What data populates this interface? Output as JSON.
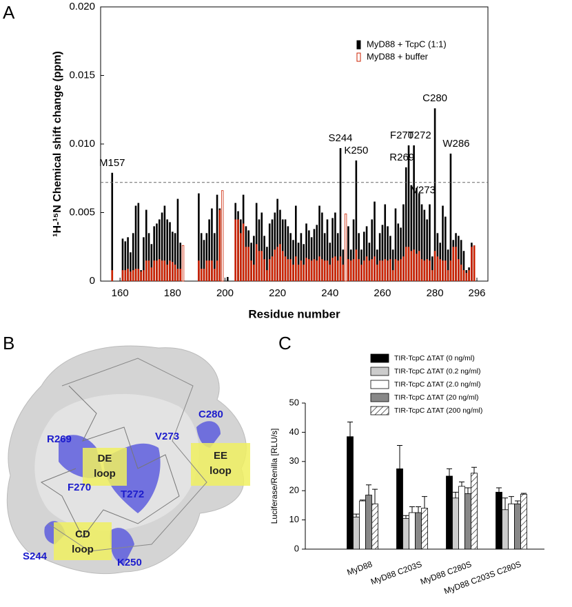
{
  "panel_labels": [
    "A",
    "B",
    "C"
  ],
  "chart_data": [
    {
      "type": "bar",
      "y_label": "¹H-¹⁵N Chemical shift change (ppm)",
      "x_label": "Residue number",
      "x": [
        157,
        161,
        162,
        163,
        164,
        165,
        166,
        167,
        168,
        169,
        170,
        171,
        172,
        173,
        174,
        175,
        176,
        177,
        178,
        179,
        180,
        181,
        182,
        183,
        184,
        190,
        191,
        192,
        193,
        194,
        195,
        196,
        197,
        198,
        199,
        201,
        204,
        205,
        206,
        207,
        208,
        209,
        210,
        211,
        212,
        213,
        214,
        215,
        216,
        217,
        218,
        219,
        220,
        221,
        222,
        223,
        224,
        225,
        226,
        227,
        228,
        229,
        230,
        231,
        232,
        233,
        234,
        235,
        236,
        237,
        238,
        239,
        240,
        241,
        242,
        243,
        244,
        245,
        246,
        247,
        248,
        249,
        250,
        251,
        252,
        253,
        254,
        255,
        256,
        257,
        258,
        259,
        260,
        261,
        262,
        263,
        264,
        265,
        266,
        267,
        268,
        269,
        270,
        271,
        272,
        273,
        274,
        275,
        276,
        277,
        278,
        279,
        280,
        281,
        282,
        283,
        284,
        285,
        286,
        287,
        288,
        289,
        290,
        291,
        292,
        293,
        294,
        295
      ],
      "series": [
        {
          "name": "MyD88 + TcpC (1:1)",
          "color": "#000000",
          "values": [
            0.0079,
            0.0031,
            0.0029,
            0.0032,
            0.0021,
            0.0035,
            0.0055,
            0.0057,
            0.0008,
            0.0032,
            0.0052,
            0.0035,
            0.0027,
            0.004,
            0.0042,
            0.0045,
            0.005,
            0.0055,
            0.0045,
            0.0043,
            0.0036,
            0.0035,
            0.006,
            0.0028,
            null,
            0.0064,
            0.0035,
            0.003,
            0.0035,
            0.0045,
            0.0053,
            0.0035,
            0.0063,
            0.0053,
            null,
            0.0003,
            0.0057,
            0.0051,
            0.0045,
            0.0063,
            0.004,
            0.0037,
            0.0028,
            0.0033,
            0.0057,
            0.0045,
            0.005,
            0.0033,
            0.0025,
            0.0042,
            0.0045,
            0.005,
            0.006,
            0.0052,
            0.0045,
            0.0045,
            0.004,
            0.0035,
            0.003,
            0.0055,
            0.0028,
            0.0035,
            0.0027,
            0.0042,
            0.0037,
            0.0032,
            0.0038,
            0.0041,
            0.0055,
            0.005,
            0.0035,
            0.0045,
            0.0028,
            0.0046,
            0.005,
            0.0035,
            0.0097,
            0.0023,
            0.0035,
            0.004,
            0.0023,
            0.0045,
            0.0088,
            0.0035,
            0.0023,
            0.0036,
            0.004,
            0.0028,
            0.0045,
            0.0058,
            0.0023,
            0.0035,
            0.0041,
            0.0056,
            0.004,
            0.0033,
            0.0023,
            0.0053,
            0.0042,
            0.0039,
            0.0056,
            0.0083,
            0.0099,
            0.007,
            0.0099,
            0.0068,
            0.0064,
            0.0056,
            0.0052,
            0.0045,
            0.0056,
            0.0018,
            0.0126,
            0.0035,
            0.0028,
            0.0055,
            0.0047,
            0.0023,
            0.0093,
            0.003,
            0.0035,
            0.0033,
            0.003,
            0.0022,
            0.0008,
            0.001,
            0.0028,
            0.0026
          ]
        },
        {
          "name": "MyD88 + buffer",
          "color": "#cc2200",
          "values": [
            0.0008,
            0.0008,
            0.0008,
            0.0009,
            0.0007,
            0.0008,
            0.0009,
            0.0009,
            0.0007,
            0.0008,
            0.0015,
            0.0015,
            0.001,
            0.0015,
            0.0015,
            0.0016,
            0.0015,
            0.0015,
            0.0012,
            0.0015,
            0.0014,
            0.0012,
            0.0009,
            0.0009,
            0.0026,
            0.0015,
            0.0009,
            0.0009,
            0.0015,
            0.0015,
            0.0015,
            0.0009,
            0.0015,
            0.0052,
            0.0066,
            null,
            0.0045,
            0.0045,
            0.0035,
            0.0042,
            0.0025,
            0.0025,
            0.0015,
            0.0012,
            0.0027,
            0.0022,
            0.0022,
            0.0016,
            0.0008,
            0.0016,
            0.0018,
            0.0023,
            0.0025,
            0.0027,
            0.0022,
            0.0018,
            0.0016,
            0.0016,
            0.0012,
            0.0018,
            0.0012,
            0.0015,
            0.0012,
            0.0017,
            0.0016,
            0.0015,
            0.0016,
            0.0015,
            0.0018,
            0.0016,
            0.0015,
            0.0015,
            0.0012,
            0.0017,
            0.0018,
            0.0015,
            0.0018,
            0.0012,
            0.0049,
            0.0016,
            0.0015,
            0.0016,
            0.0023,
            0.0016,
            0.0012,
            0.0015,
            0.0018,
            0.0015,
            0.0016,
            0.0018,
            0.0012,
            0.0015,
            0.0015,
            0.0016,
            0.0015,
            0.0016,
            0.0008,
            0.0016,
            0.0015,
            0.0016,
            0.0018,
            0.0025,
            0.0025,
            0.0022,
            0.0023,
            0.002,
            0.0022,
            0.0016,
            0.0015,
            0.0016,
            0.0015,
            0.0008,
            0.0022,
            0.0018,
            0.0016,
            0.0015,
            0.0015,
            0.0008,
            0.0015,
            0.0025,
            0.0025,
            0.0016,
            0.0012,
            0.0008,
            0.0006,
            0.0008,
            0.0025,
            0.0026
          ]
        }
      ],
      "annotations": [
        {
          "text": "M157",
          "x": 157
        },
        {
          "text": "S244",
          "x": 244
        },
        {
          "text": "K250",
          "x": 250
        },
        {
          "text": "R269",
          "x": 269
        },
        {
          "text": "F270",
          "x": 270
        },
        {
          "text": "T272",
          "x": 272
        },
        {
          "text": "V273",
          "x": 273
        },
        {
          "text": "C280",
          "x": 280
        },
        {
          "text": "W286",
          "x": 286
        }
      ],
      "threshold": 0.0072,
      "xlim": [
        152.6,
        300.2
      ],
      "xticks": [
        160,
        180,
        200,
        220,
        240,
        260,
        280,
        296
      ],
      "ylim": [
        0,
        0.02
      ],
      "yticks": [
        0,
        0.005,
        {
          "value": 0.01,
          "label": "0.010"
        },
        0.015,
        {
          "value": 0.02,
          "label": "0.020"
        }
      ],
      "legend": "top-right"
    },
    {
      "type": "bar",
      "y_label": "Luciferase/Renilla [RLU/s]",
      "categories": [
        "MyD88",
        "MyD88 C203S",
        "MyD88 C280S",
        "MyD88 C203S C280S"
      ],
      "series": [
        {
          "name": "TIR-TcpC ΔTAT (0 ng/ml)",
          "color": "#000000",
          "values": [
            38.5,
            27.5,
            25,
            19.5
          ],
          "errors": [
            5,
            8,
            2.5,
            1.5
          ]
        },
        {
          "name": "TIR-TcpC ΔTAT (0.2 ng/ml)",
          "color": "#cccccc",
          "values": [
            11,
            10.5,
            17.5,
            13.5
          ],
          "errors": [
            1,
            1,
            2,
            4
          ]
        },
        {
          "name": "TIR-TcpC ΔTAT (2.0 ng/ml)",
          "color": "#ffffff",
          "values": [
            16.5,
            12.5,
            21.5,
            15.5
          ],
          "errors": [
            0.3,
            2,
            1.5,
            2.5
          ]
        },
        {
          "name": "TIR-TcpC ΔTAT (20 ng/ml)",
          "color": "#888888",
          "values": [
            18.5,
            12.5,
            19,
            15.5
          ],
          "errors": [
            3.5,
            2,
            2,
            1
          ]
        },
        {
          "name": "TIR-TcpC ΔTAT (200 ng/ml)",
          "color": "#ffffff",
          "pattern": "hatch",
          "values": [
            15.5,
            14,
            26,
            18.8
          ],
          "errors": [
            5,
            4,
            2,
            0.3
          ]
        }
      ],
      "ylim": [
        0,
        50
      ],
      "yticks": [
        0,
        10,
        20,
        30,
        40,
        50
      ],
      "legend": "top-right"
    }
  ],
  "panel_b": {
    "residue_labels": [
      "C280",
      "R269",
      "V273",
      "F270",
      "T272",
      "S244",
      "K250"
    ],
    "loops": [
      [
        "DE",
        "loop"
      ],
      [
        "EE",
        "loop"
      ],
      [
        "CD",
        "loop"
      ]
    ]
  }
}
